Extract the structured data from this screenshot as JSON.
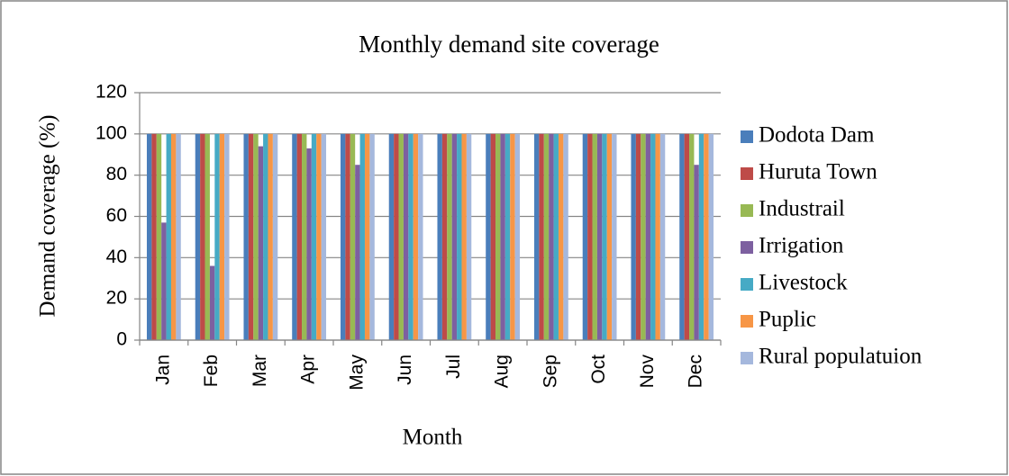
{
  "chart_data": {
    "type": "bar",
    "title": "Monthly demand site coverage",
    "x_label": "Month",
    "y_label": "Demand coverage (%)",
    "categories": [
      "Jan",
      "Feb",
      "Mar",
      "Apr",
      "May",
      "Jun",
      "Jul",
      "Aug",
      "Sep",
      "Oct",
      "Nov",
      "Dec"
    ],
    "series": [
      {
        "name": "Dodota Dam",
        "color": "#4a7ebb",
        "values": [
          100,
          100,
          100,
          100,
          100,
          100,
          100,
          100,
          100,
          100,
          100,
          100
        ]
      },
      {
        "name": "Huruta Town",
        "color": "#be4b48",
        "values": [
          100,
          100,
          100,
          100,
          100,
          100,
          100,
          100,
          100,
          100,
          100,
          100
        ]
      },
      {
        "name": "Industrail",
        "color": "#98b954",
        "values": [
          100,
          100,
          100,
          100,
          100,
          100,
          100,
          100,
          100,
          100,
          100,
          100
        ]
      },
      {
        "name": "Irrigation",
        "color": "#7d60a0",
        "values": [
          57,
          36,
          94,
          93,
          85,
          100,
          100,
          100,
          100,
          100,
          100,
          85
        ]
      },
      {
        "name": "Livestock",
        "color": "#46aac5",
        "values": [
          100,
          100,
          100,
          100,
          100,
          100,
          100,
          100,
          100,
          100,
          100,
          100
        ]
      },
      {
        "name": "Puplic",
        "color": "#f79646",
        "values": [
          100,
          100,
          100,
          100,
          100,
          100,
          100,
          100,
          100,
          100,
          100,
          100
        ]
      },
      {
        "name": "Rural populatuion",
        "color": "#a5b8dd",
        "values": [
          100,
          100,
          100,
          100,
          100,
          100,
          100,
          100,
          100,
          100,
          100,
          100
        ]
      }
    ],
    "ylim": [
      0,
      120
    ],
    "yticks": [
      0,
      20,
      40,
      60,
      80,
      100,
      120
    ],
    "grid": true,
    "legend": "right"
  }
}
